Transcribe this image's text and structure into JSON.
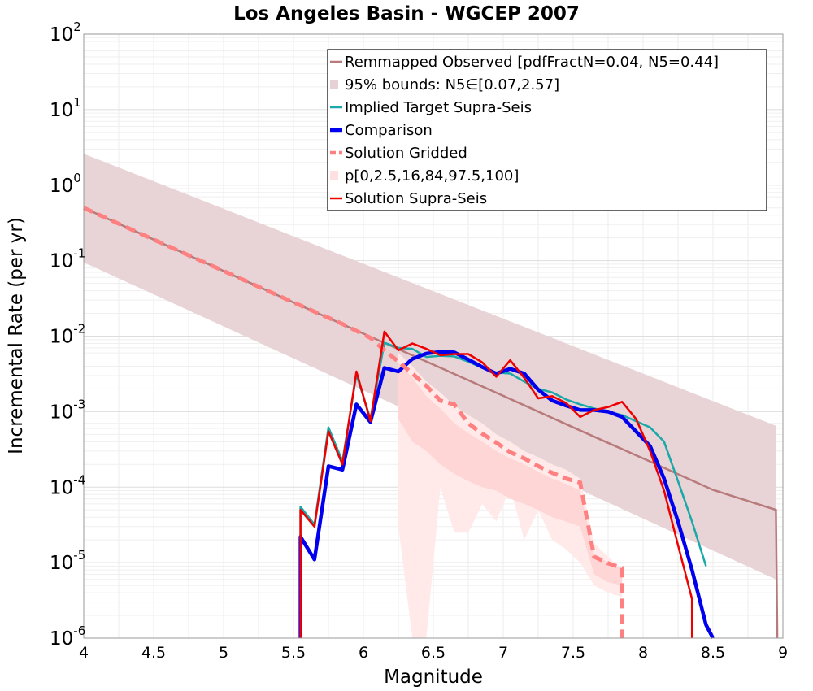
{
  "chart_data": {
    "type": "line",
    "title": "Los Angeles Basin - WGCEP 2007",
    "xlabel": "Magnitude",
    "ylabel": "Incremental Rate (per yr)",
    "xlim": [
      4,
      9
    ],
    "ylim": [
      1e-06,
      100
    ],
    "yscale": "log",
    "grid": true,
    "legend_position": "top-right",
    "x_ticks": [
      "4",
      "4.5",
      "5",
      "5.5",
      "6",
      "6.5",
      "7",
      "7.5",
      "8",
      "8.5",
      "9"
    ],
    "y_ticks": [
      {
        "base": "10",
        "exp": "-6"
      },
      {
        "base": "10",
        "exp": "-5"
      },
      {
        "base": "10",
        "exp": "-4"
      },
      {
        "base": "10",
        "exp": "-3"
      },
      {
        "base": "10",
        "exp": "-2"
      },
      {
        "base": "10",
        "exp": "-1"
      },
      {
        "base": "10",
        "exp": "0"
      },
      {
        "base": "10",
        "exp": "1"
      },
      {
        "base": "10",
        "exp": "2"
      }
    ],
    "legend": [
      {
        "label": "Remmapped Observed [pdfFractN=0.04, N5=0.44]",
        "color": "#b87a7a",
        "style": "line"
      },
      {
        "label": "95% bounds: N5∈[0.07,2.57]",
        "color": "#e6d2d4",
        "style": "patch"
      },
      {
        "label": "Implied Target Supra-Seis",
        "color": "#1aa8a8",
        "style": "line"
      },
      {
        "label": "Comparison",
        "color": "#0000ee",
        "style": "thick"
      },
      {
        "label": "Solution Gridded",
        "color": "#ff8080",
        "style": "dashed"
      },
      {
        "label": "p[0,2.5,16,84,97.5,100]",
        "color": "#ffe0e0",
        "style": "patch"
      },
      {
        "label": "Solution Supra-Seis",
        "color": "#ee0000",
        "style": "line"
      }
    ],
    "series": [
      {
        "id": "observed_bounds",
        "x": [
          4.0,
          8.95
        ],
        "lower": [
          0.095,
          6e-06
        ],
        "upper": [
          2.6,
          0.00065
        ]
      },
      {
        "id": "observed",
        "x": [
          4.0,
          4.5,
          5.0,
          5.5,
          6.0,
          6.5,
          7.0,
          7.5,
          8.0,
          8.5,
          8.95,
          8.96
        ],
        "y": [
          0.5,
          0.19,
          0.073,
          0.028,
          0.0108,
          0.0042,
          0.00162,
          0.00062,
          0.00024,
          9.2e-05,
          5e-05,
          1e-06
        ]
      },
      {
        "id": "gridded_outer",
        "x": [
          6.25,
          6.35,
          6.45,
          6.55,
          6.65,
          6.75,
          6.85,
          6.95,
          7.05,
          7.15,
          7.25,
          7.35,
          7.45,
          7.55,
          7.65,
          7.75,
          7.85
        ],
        "upper": [
          0.006,
          0.004,
          0.0025,
          0.0018,
          0.0012,
          0.0009,
          0.0007,
          0.0005,
          0.0004,
          0.0003,
          0.00025,
          0.0002,
          0.00017,
          0.00013,
          1.8e-05,
          1.2e-05,
          8e-06
        ],
        "lower": [
          3e-05,
          1e-06,
          1e-06,
          0.0001,
          2.5e-05,
          2.5e-05,
          6e-05,
          3.5e-05,
          0.0001,
          2e-05,
          5e-05,
          2e-05,
          1.5e-05,
          1e-05,
          5e-06,
          4e-06,
          3.5e-06
        ]
      },
      {
        "id": "gridded_inner",
        "x": [
          6.25,
          6.35,
          6.45,
          6.55,
          6.65,
          6.75,
          6.85,
          6.95,
          7.05,
          7.15,
          7.25,
          7.35,
          7.45,
          7.55,
          7.65,
          7.75,
          7.85
        ],
        "upper": [
          0.0045,
          0.0028,
          0.0016,
          0.0011,
          0.0007,
          0.00052,
          0.0004,
          0.0003,
          0.00024,
          0.0002,
          0.00016,
          0.00013,
          0.00011,
          9e-05,
          1.3e-05,
          1e-05,
          8.5e-06
        ],
        "lower": [
          0.0008,
          0.0004,
          0.0003,
          0.0002,
          0.00015,
          0.00012,
          0.0001,
          9e-05,
          7e-05,
          6e-05,
          5e-05,
          4e-05,
          3.5e-05,
          3e-05,
          7e-06,
          5.5e-06,
          5e-06
        ]
      },
      {
        "id": "implied_target",
        "x": [
          5.55,
          5.55,
          5.65,
          5.75,
          5.85,
          5.95,
          6.05,
          6.15,
          6.25,
          6.35,
          6.45,
          6.55,
          6.65,
          6.75,
          6.85,
          6.95,
          7.05,
          7.15,
          7.25,
          7.35,
          7.45,
          7.55,
          7.65,
          7.75,
          7.85,
          8.05,
          8.15,
          8.25,
          8.35,
          8.45
        ],
        "y": [
          1e-06,
          5.5e-05,
          3.2e-05,
          0.00062,
          0.00022,
          0.0031,
          0.0008,
          0.0082,
          0.007,
          0.0068,
          0.0053,
          0.0055,
          0.0054,
          0.0046,
          0.0038,
          0.0033,
          0.0032,
          0.0025,
          0.002,
          0.0018,
          0.00145,
          0.00125,
          0.0011,
          0.001,
          0.0009,
          0.00062,
          0.0004,
          0.00012,
          3.5e-05,
          9e-06
        ]
      },
      {
        "id": "comparison",
        "x": [
          5.55,
          5.55,
          5.65,
          5.75,
          5.85,
          5.95,
          6.05,
          6.15,
          6.25,
          6.35,
          6.45,
          6.55,
          6.65,
          6.75,
          6.85,
          6.95,
          7.05,
          7.15,
          7.25,
          7.35,
          7.45,
          7.55,
          7.65,
          7.75,
          7.85,
          8.05,
          8.15,
          8.25,
          8.35,
          8.45,
          8.5
        ],
        "y": [
          1e-06,
          2.2e-05,
          1.1e-05,
          0.00019,
          0.00017,
          0.00125,
          0.00073,
          0.0038,
          0.0034,
          0.005,
          0.0059,
          0.0062,
          0.0061,
          0.0049,
          0.0039,
          0.0032,
          0.0037,
          0.0032,
          0.00195,
          0.0014,
          0.0012,
          0.00105,
          0.00105,
          0.001,
          0.00085,
          0.00035,
          0.00013,
          3.5e-05,
          8e-06,
          1.5e-06,
          1e-06
        ]
      },
      {
        "id": "gridded",
        "x": [
          4.0,
          4.5,
          5.0,
          5.5,
          5.85,
          6.05,
          6.15,
          6.25,
          6.35,
          6.45,
          6.55,
          6.65,
          6.75,
          6.85,
          6.95,
          7.05,
          7.15,
          7.25,
          7.35,
          7.45,
          7.55,
          7.65,
          7.75,
          7.85,
          7.85
        ],
        "y": [
          0.5,
          0.19,
          0.073,
          0.028,
          0.0145,
          0.0095,
          0.0065,
          0.0046,
          0.0032,
          0.0022,
          0.0014,
          0.00125,
          0.0007,
          0.00051,
          0.00039,
          0.00029,
          0.00024,
          0.00019,
          0.000155,
          0.00013,
          0.000115,
          1.2e-05,
          9.8e-06,
          8.5e-06,
          1e-06
        ]
      },
      {
        "id": "supra_seis",
        "x": [
          5.55,
          5.55,
          5.65,
          5.75,
          5.85,
          5.95,
          6.05,
          6.15,
          6.25,
          6.35,
          6.45,
          6.55,
          6.65,
          6.75,
          6.85,
          6.95,
          7.05,
          7.15,
          7.25,
          7.35,
          7.45,
          7.55,
          7.65,
          7.75,
          7.85,
          7.95,
          8.05,
          8.15,
          8.25,
          8.35,
          8.35
        ],
        "y": [
          1e-06,
          5e-05,
          3e-05,
          0.00055,
          0.0002,
          0.0034,
          0.00075,
          0.0115,
          0.0065,
          0.008,
          0.0068,
          0.0056,
          0.0058,
          0.0058,
          0.0045,
          0.0029,
          0.0048,
          0.0028,
          0.0015,
          0.0016,
          0.0013,
          0.00085,
          0.00105,
          0.00115,
          0.00135,
          0.0008,
          0.0003,
          9e-05,
          1.7e-05,
          3.3e-06,
          1e-06
        ]
      }
    ]
  }
}
